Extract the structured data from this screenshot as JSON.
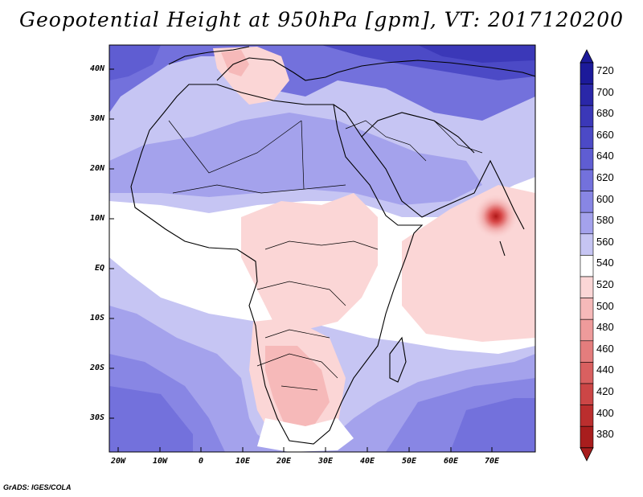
{
  "title": "Geopotential Height at 950hPa [gpm], VT: 2017120200",
  "footer": "GrADS: IGES/COLA",
  "y_ticks": [
    "40N",
    "30N",
    "20N",
    "10N",
    "EQ",
    "10S",
    "20S",
    "30S"
  ],
  "x_ticks": [
    "20W",
    "10W",
    "0",
    "10E",
    "20E",
    "30E",
    "40E",
    "50E",
    "60E",
    "70E"
  ],
  "colorbar": {
    "levels": [
      "720",
      "700",
      "680",
      "660",
      "640",
      "620",
      "600",
      "580",
      "560",
      "540",
      "520",
      "500",
      "480",
      "460",
      "440",
      "420",
      "400",
      "380"
    ],
    "colors": [
      "#1c1a9a",
      "#2a27a8",
      "#3b38b8",
      "#4c4ac6",
      "#5f5dd2",
      "#7371dc",
      "#8886e4",
      "#a4a2ec",
      "#c6c5f3",
      "#ffffff",
      "#fbd6d6",
      "#f6b9b9",
      "#ee9b9b",
      "#e47d7d",
      "#d96060",
      "#cc4646",
      "#bb2e2e",
      "#a81d1d"
    ]
  },
  "highlight": {
    "label": "10N",
    "lon": "70E"
  }
}
